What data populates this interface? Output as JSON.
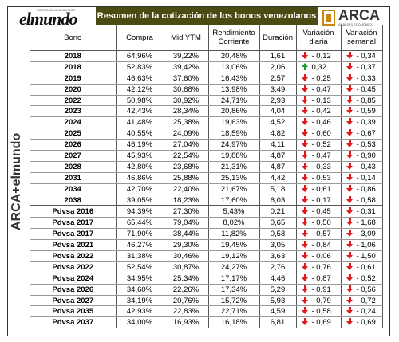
{
  "header": {
    "title": "Resumen de la cotización de los bonos venezolanos",
    "logo_left": "elmundo",
    "logo_left_small": "ECONOMÍA & NEGOCIOS",
    "logo_right": "ARCA",
    "logo_right_small": "ANÁLISIS ECONÓMICO",
    "side_logo": "ARCA+elmundo"
  },
  "columns": [
    "Bono",
    "Compra",
    "Mid YTM",
    "Rendimiento Corriente",
    "Duración",
    "Variación diaria",
    "Variación semanal"
  ],
  "rows": [
    {
      "bono": "2018",
      "compra": "64,96%",
      "ytm": "39,22%",
      "rend": "20,48%",
      "dur": "1,61",
      "vd": "- 0,12",
      "vd_dir": "down",
      "vs": "- 0,34",
      "vs_dir": "down"
    },
    {
      "bono": "2018",
      "compra": "52,83%",
      "ytm": "39,42%",
      "rend": "13,06%",
      "dur": "2,06",
      "vd": "0,32",
      "vd_dir": "up",
      "vs": "- 0,37",
      "vs_dir": "down"
    },
    {
      "bono": "2019",
      "compra": "46,63%",
      "ytm": "37,60%",
      "rend": "16,43%",
      "dur": "2,57",
      "vd": "- 0,25",
      "vd_dir": "down",
      "vs": "- 0,33",
      "vs_dir": "down"
    },
    {
      "bono": "2020",
      "compra": "42,12%",
      "ytm": "30,68%",
      "rend": "13,98%",
      "dur": "3,49",
      "vd": "- 0,47",
      "vd_dir": "down",
      "vs": "- 0,45",
      "vs_dir": "down"
    },
    {
      "bono": "2022",
      "compra": "50,98%",
      "ytm": "30,92%",
      "rend": "24,71%",
      "dur": "2,93",
      "vd": "- 0,13",
      "vd_dir": "down",
      "vs": "- 0,85",
      "vs_dir": "down"
    },
    {
      "bono": "2023",
      "compra": "42,43%",
      "ytm": "28,34%",
      "rend": "20,86%",
      "dur": "4,04",
      "vd": "- 0,42",
      "vd_dir": "down",
      "vs": "- 0,59",
      "vs_dir": "down"
    },
    {
      "bono": "2024",
      "compra": "41,48%",
      "ytm": "25,38%",
      "rend": "19,63%",
      "dur": "4,52",
      "vd": "- 0,46",
      "vd_dir": "down",
      "vs": "- 0,39",
      "vs_dir": "down"
    },
    {
      "bono": "2025",
      "compra": "40,55%",
      "ytm": "24,09%",
      "rend": "18,59%",
      "dur": "4,82",
      "vd": "- 0,60",
      "vd_dir": "down",
      "vs": "- 0,67",
      "vs_dir": "down"
    },
    {
      "bono": "2026",
      "compra": "46,19%",
      "ytm": "27,04%",
      "rend": "24,97%",
      "dur": "4,11",
      "vd": "- 0,52",
      "vd_dir": "down",
      "vs": "- 0,53",
      "vs_dir": "down"
    },
    {
      "bono": "2027",
      "compra": "45,93%",
      "ytm": "22,54%",
      "rend": "19,88%",
      "dur": "4,87",
      "vd": "- 0,47",
      "vd_dir": "down",
      "vs": "- 0,90",
      "vs_dir": "down"
    },
    {
      "bono": "2028",
      "compra": "42,80%",
      "ytm": "23,68%",
      "rend": "21,31%",
      "dur": "4,87",
      "vd": "- 0,33",
      "vd_dir": "down",
      "vs": "- 0,43",
      "vs_dir": "down"
    },
    {
      "bono": "2031",
      "compra": "46,86%",
      "ytm": "25,88%",
      "rend": "25,13%",
      "dur": "4,42",
      "vd": "- 0,53",
      "vd_dir": "down",
      "vs": "- 0,14",
      "vs_dir": "down"
    },
    {
      "bono": "2034",
      "compra": "42,70%",
      "ytm": "22,40%",
      "rend": "21,67%",
      "dur": "5,18",
      "vd": "- 0,61",
      "vd_dir": "down",
      "vs": "- 0,86",
      "vs_dir": "down"
    },
    {
      "bono": "2038",
      "compra": "39,05%",
      "ytm": "18,23%",
      "rend": "17,60%",
      "dur": "6,03",
      "vd": "- 0,17",
      "vd_dir": "down",
      "vs": "- 0,58",
      "vs_dir": "down"
    },
    {
      "bono": "Pdvsa 2016",
      "compra": "94,39%",
      "ytm": "27,30%",
      "rend": "5,43%",
      "dur": "0,21",
      "vd": "- 0,45",
      "vd_dir": "down",
      "vs": "- 0,31",
      "vs_dir": "down"
    },
    {
      "bono": "Pdvsa 2017",
      "compra": "65,44%",
      "ytm": "79,04%",
      "rend": "8,02%",
      "dur": "0,65",
      "vd": "- 0,50",
      "vd_dir": "down",
      "vs": "- 1,68",
      "vs_dir": "down"
    },
    {
      "bono": "Pdvsa 2017",
      "compra": "71,90%",
      "ytm": "38,44%",
      "rend": "11,82%",
      "dur": "0,58",
      "vd": "- 0,57",
      "vd_dir": "down",
      "vs": "- 3,09",
      "vs_dir": "down"
    },
    {
      "bono": "Pdvsa 2021",
      "compra": "46,27%",
      "ytm": "29,30%",
      "rend": "19,45%",
      "dur": "3,05",
      "vd": "- 0,84",
      "vd_dir": "down",
      "vs": "- 1,06",
      "vs_dir": "down"
    },
    {
      "bono": "Pdvsa 2022",
      "compra": "31,38%",
      "ytm": "30,46%",
      "rend": "19,12%",
      "dur": "3,63",
      "vd": "- 0,06",
      "vd_dir": "down",
      "vs": "- 1,50",
      "vs_dir": "down"
    },
    {
      "bono": "Pdvsa 2022",
      "compra": "52,54%",
      "ytm": "30,87%",
      "rend": "24,27%",
      "dur": "2,76",
      "vd": "- 0,76",
      "vd_dir": "down",
      "vs": "- 0,61",
      "vs_dir": "down"
    },
    {
      "bono": "Pdvsa 2024",
      "compra": "34,95%",
      "ytm": "25,34%",
      "rend": "17,17%",
      "dur": "4,46",
      "vd": "- 0,87",
      "vd_dir": "down",
      "vs": "- 0,52",
      "vs_dir": "down"
    },
    {
      "bono": "Pdvsa 2026",
      "compra": "34,60%",
      "ytm": "22,26%",
      "rend": "17,34%",
      "dur": "5,29",
      "vd": "- 0,91",
      "vd_dir": "down",
      "vs": "- 0,56",
      "vs_dir": "down"
    },
    {
      "bono": "Pdvsa 2027",
      "compra": "34,19%",
      "ytm": "20,76%",
      "rend": "15,72%",
      "dur": "5,93",
      "vd": "- 0,79",
      "vd_dir": "down",
      "vs": "- 0,72",
      "vs_dir": "down"
    },
    {
      "bono": "Pdvsa 2035",
      "compra": "42,93%",
      "ytm": "22,83%",
      "rend": "22,71%",
      "dur": "4,59",
      "vd": "- 0,58",
      "vd_dir": "down",
      "vs": "- 0,24",
      "vs_dir": "down"
    },
    {
      "bono": "Pdvsa 2037",
      "compra": "34,00%",
      "ytm": "16,93%",
      "rend": "16,18%",
      "dur": "6,81",
      "vd": "- 0,69",
      "vd_dir": "down",
      "vs": "- 0,69",
      "vs_dir": "down"
    }
  ],
  "colors": {
    "banner": "#4a4a12",
    "up": "#1a9a2a",
    "down": "#e01a1a",
    "brand": "#d18a0f"
  }
}
